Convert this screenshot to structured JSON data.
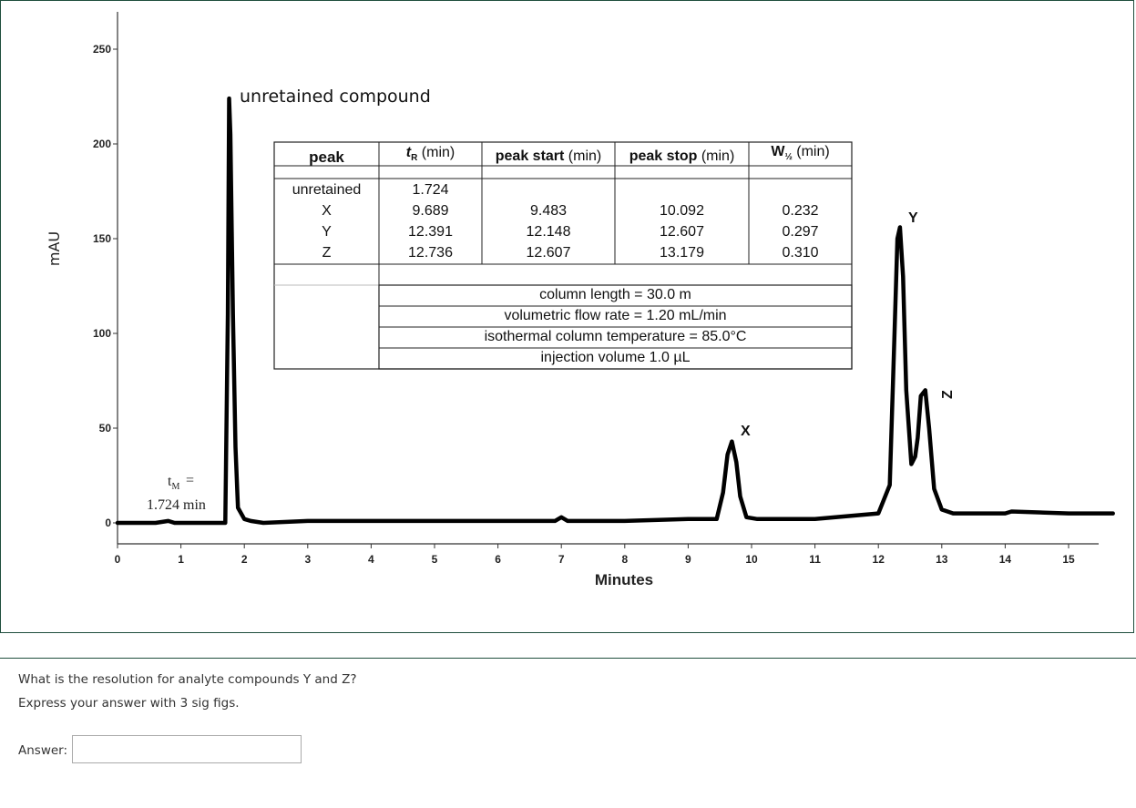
{
  "chart_data": {
    "type": "line",
    "title": "",
    "xlabel": "Minutes",
    "ylabel": "mAU",
    "xlim": [
      0,
      15.7
    ],
    "ylim": [
      0,
      260
    ],
    "x_ticks": [
      "0",
      "1",
      "2",
      "3",
      "4",
      "5",
      "6",
      "7",
      "8",
      "9",
      "10",
      "11",
      "12",
      "13",
      "14",
      "15"
    ],
    "y_ticks": [
      "0",
      "50",
      "100",
      "150",
      "200",
      "250"
    ],
    "grid": false,
    "series": [
      {
        "color": "#000000",
        "x": [
          0.0,
          0.6,
          0.8,
          0.9,
          1.7,
          1.74,
          1.76,
          1.78,
          1.82,
          1.86,
          1.9,
          2.0,
          2.1,
          2.3,
          3.0,
          3.1,
          4.0,
          5.0,
          6.0,
          6.9,
          7.0,
          7.1,
          8.0,
          9.0,
          9.45,
          9.55,
          9.62,
          9.69,
          9.76,
          9.82,
          9.92,
          10.09,
          11.0,
          12.0,
          12.18,
          12.25,
          12.3,
          12.34,
          12.39,
          12.44,
          12.52,
          12.58,
          12.62,
          12.67,
          12.74,
          12.8,
          12.88,
          13.0,
          13.18,
          14.0,
          14.1,
          15.0,
          15.7
        ],
        "y": [
          0,
          0,
          1,
          0,
          0,
          110,
          224,
          205,
          110,
          40,
          8,
          2,
          1,
          0,
          1,
          1,
          1,
          1,
          1,
          1,
          3,
          1,
          1,
          2,
          2,
          16,
          36,
          43,
          32,
          14,
          3,
          2,
          2,
          5,
          20,
          95,
          150,
          156,
          130,
          70,
          31,
          35,
          45,
          67,
          70,
          50,
          18,
          7,
          5,
          5,
          6,
          5,
          5
        ]
      }
    ],
    "annotations": {
      "unretained": "unretained compound",
      "tm_symbol": "t",
      "tm_subscript": "M",
      "tm_equals": "=",
      "tm_value": "1.724 min",
      "peak_x": "X",
      "peak_y": "Y",
      "peak_z": "Z"
    },
    "table": {
      "headers": {
        "peak": "peak",
        "tr_symbol": "t",
        "tr_sub": "R",
        "tr_unit": "(min)",
        "start_bold": "peak start",
        "start_unit": "(min)",
        "stop_bold": "peak stop",
        "stop_unit": "(min)",
        "w_symbol": "W",
        "w_sub": "½",
        "w_unit": "(min)"
      },
      "rows": [
        [
          "unretained",
          "1.724",
          "",
          "",
          ""
        ],
        [
          "X",
          "9.689",
          "9.483",
          "10.092",
          "0.232"
        ],
        [
          "Y",
          "12.391",
          "12.148",
          "12.607",
          "0.297"
        ],
        [
          "Z",
          "12.736",
          "12.607",
          "13.179",
          "0.310"
        ]
      ],
      "conditions": [
        "column length = 30.0 m",
        "volumetric flow rate = 1.20 mL/min",
        "isothermal column temperature = 85.0°C",
        "injection volume 1.0 µL"
      ]
    }
  },
  "question": {
    "line1": "What is the resolution for analyte compounds Y and Z?",
    "line2": "Express your answer with 3 sig figs.",
    "answer_label": "Answer:",
    "answer_value": ""
  }
}
